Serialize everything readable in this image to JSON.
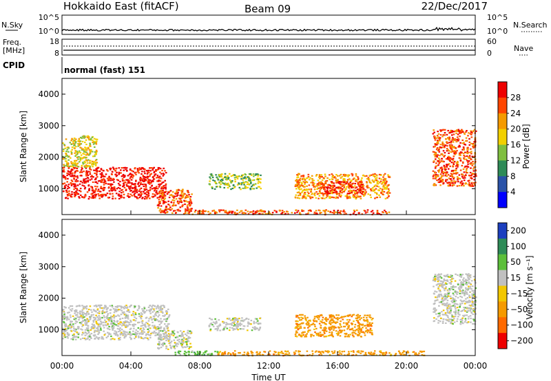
{
  "header": {
    "station": "Hokkaido East (fitACF)",
    "beam": "Beam 09",
    "date": "22/Dec/2017"
  },
  "top_panels": {
    "nsky_label": "N.Sky",
    "nsky_ticks": [
      "10^5",
      "10^0"
    ],
    "nsearch_label": "N.Search",
    "nsearch_ticks": [
      "10^5",
      "10^0"
    ],
    "freq_label_1": "Freq.",
    "freq_label_2": "[MHz]",
    "freq_ticks": [
      "18",
      "8"
    ],
    "nave_label": "Nave",
    "nave_ticks": [
      "60",
      "0"
    ],
    "cpid_label": "CPID",
    "cpid_text": "normal (fast) 151"
  },
  "chart_data": [
    {
      "type": "heatmap",
      "name": "power",
      "xlabel": "",
      "ylabel": "Slant Range [km]",
      "ylim": [
        180,
        4500
      ],
      "yticks": [
        1000,
        2000,
        3000,
        4000
      ],
      "colorbar": {
        "label": "Power [dB]",
        "ticks": [
          4,
          8,
          12,
          16,
          20,
          24,
          28
        ],
        "colors": [
          "#0000ff",
          "#2a52a8",
          "#2e8b57",
          "#7fbf3f",
          "#f2d000",
          "#f59a00",
          "#ff4500",
          "#ee0000"
        ]
      },
      "regions": [
        {
          "t0": 0.0,
          "t1": 6.0,
          "r0": 700,
          "r1": 1700,
          "level": 26
        },
        {
          "t0": 0.0,
          "t1": 2.0,
          "r0": 1700,
          "r1": 2700,
          "level": 16
        },
        {
          "t0": 5.5,
          "t1": 7.5,
          "r0": 250,
          "r1": 1000,
          "level": 24
        },
        {
          "t0": 8.5,
          "t1": 11.5,
          "r0": 1000,
          "r1": 1500,
          "level": 12
        },
        {
          "t0": 13.5,
          "t1": 19.0,
          "r0": 700,
          "r1": 1500,
          "level": 18
        },
        {
          "t0": 15.0,
          "t1": 17.5,
          "r0": 850,
          "r1": 1250,
          "level": 26
        },
        {
          "t0": 7.0,
          "t1": 19.0,
          "r0": 200,
          "r1": 350,
          "level": 24
        },
        {
          "t0": 21.5,
          "t1": 24.0,
          "r0": 1100,
          "r1": 2900,
          "level": 22
        }
      ]
    },
    {
      "type": "heatmap",
      "name": "velocity",
      "xlabel": "Time UT",
      "ylabel": "Slant Range [km]",
      "ylim": [
        180,
        4500
      ],
      "yticks": [
        1000,
        2000,
        3000,
        4000
      ],
      "xticks": [
        "00:00",
        "04:00",
        "08:00",
        "12:00",
        "16:00",
        "20:00",
        "00:00"
      ],
      "colorbar": {
        "label": "Velocity [m s⁻¹]",
        "ticks": [
          "200",
          "100",
          "50",
          "15",
          "−15",
          "−50",
          "−100",
          "−200"
        ],
        "colors": [
          "#1c3fbf",
          "#2e8b57",
          "#5cbf3a",
          "#c0c0c0",
          "#f2c700",
          "#f59a00",
          "#ff6a00",
          "#ee0000"
        ]
      },
      "regions": [
        {
          "t0": 0.0,
          "t1": 6.2,
          "r0": 700,
          "r1": 1800,
          "level": "15"
        },
        {
          "t0": 5.5,
          "t1": 7.5,
          "r0": 400,
          "r1": 1000,
          "level": "15"
        },
        {
          "t0": 8.5,
          "t1": 11.5,
          "r0": 1000,
          "r1": 1400,
          "level": "15"
        },
        {
          "t0": 13.5,
          "t1": 18.0,
          "r0": 800,
          "r1": 1500,
          "level": "-50"
        },
        {
          "t0": 6.5,
          "t1": 9.0,
          "r0": 200,
          "r1": 350,
          "level": "50"
        },
        {
          "t0": 9.0,
          "t1": 21.0,
          "r0": 200,
          "r1": 350,
          "level": "-50"
        },
        {
          "t0": 21.5,
          "t1": 24.0,
          "r0": 1200,
          "r1": 2800,
          "level": "15"
        }
      ]
    }
  ]
}
